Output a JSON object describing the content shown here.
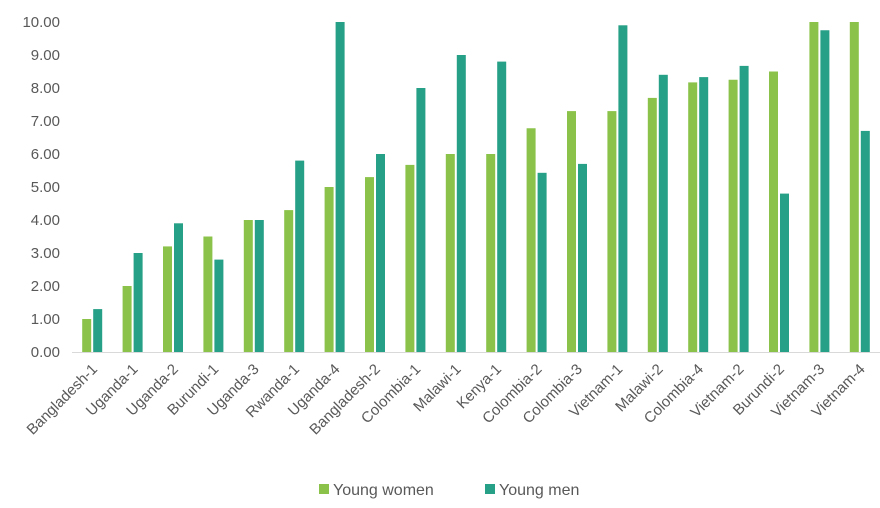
{
  "chart_data": {
    "type": "bar",
    "categories": [
      "Bangladesh-1",
      "Uganda-1",
      "Uganda-2",
      "Burundi-1",
      "Uganda-3",
      "Rwanda-1",
      "Uganda-4",
      "Bangladesh-2",
      "Colombia-1",
      "Malawi-1",
      "Kenya-1",
      "Colombia-2",
      "Colombia-3",
      "Vietnam-1",
      "Malawi-2",
      "Colombia-4",
      "Vietnam-2",
      "Burundi-2",
      "Vietnam-3",
      "Vietnam-4"
    ],
    "series": [
      {
        "name": "Young women",
        "color": "#8BC34A",
        "values": [
          1.0,
          2.0,
          3.2,
          3.5,
          4.0,
          4.3,
          5.0,
          5.3,
          5.67,
          6.0,
          6.0,
          6.78,
          7.3,
          7.3,
          7.7,
          8.17,
          8.25,
          8.5,
          10.0,
          10.0
        ]
      },
      {
        "name": "Young men",
        "color": "#26A086",
        "values": [
          1.3,
          3.0,
          3.9,
          2.8,
          4.0,
          5.8,
          10.0,
          6.0,
          8.0,
          9.0,
          8.8,
          5.43,
          5.7,
          9.9,
          8.4,
          8.33,
          8.67,
          4.8,
          9.75,
          6.7
        ]
      }
    ],
    "yticks": [
      "0.00",
      "1.00",
      "2.00",
      "3.00",
      "4.00",
      "5.00",
      "6.00",
      "7.00",
      "8.00",
      "9.00",
      "10.00"
    ],
    "ylim": [
      0,
      10
    ],
    "grid": false,
    "legend": "bottom"
  }
}
